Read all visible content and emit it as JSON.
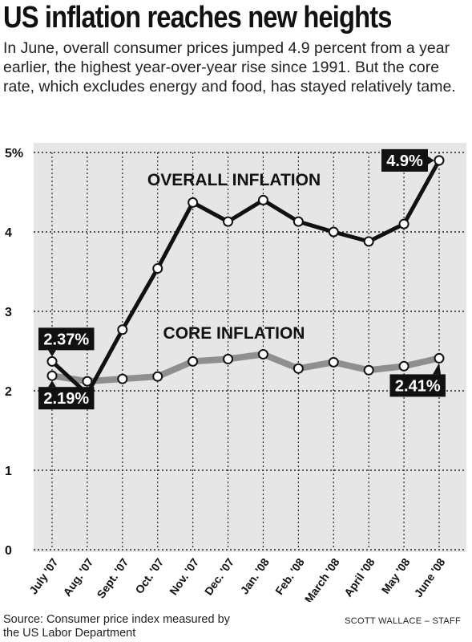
{
  "title": "US inflation reaches new heights",
  "subtitle": "In June, overall consumer prices jumped 4.9 percent from a year earlier, the highest year-over-year rise since 1991. But the core rate, which excludes energy and food, has stayed relatively tame.",
  "source": "Source: Consumer price index measured by the US Labor Department",
  "credit": "SCOTT WALLACE – STAFF",
  "colors": {
    "plot_background": "#e6e6e6",
    "overall_line": "#111111",
    "core_line": "#8f8f8f",
    "marker_fill": "#ffffff",
    "callout_fill": "#111111",
    "callout_text": "#ffffff"
  },
  "chart_data": {
    "type": "line",
    "categories": [
      "July '07",
      "Aug. '07",
      "Sept. '07",
      "Oct. '07",
      "Nov. '07",
      "Dec. '07",
      "Jan. '08",
      "Feb. '08",
      "March '08",
      "April '08",
      "May '08",
      "June '08"
    ],
    "series": [
      {
        "name": "OVERALL INFLATION",
        "values": [
          2.37,
          1.96,
          2.77,
          3.54,
          4.37,
          4.13,
          4.4,
          4.13,
          4.0,
          3.88,
          4.1,
          4.9
        ]
      },
      {
        "name": "CORE INFLATION",
        "values": [
          2.19,
          2.12,
          2.15,
          2.18,
          2.37,
          2.4,
          2.46,
          2.28,
          2.36,
          2.26,
          2.31,
          2.41
        ]
      }
    ],
    "callouts": [
      {
        "series": 0,
        "index": 0,
        "label": "2.37%",
        "side": "above"
      },
      {
        "series": 1,
        "index": 0,
        "label": "2.19%",
        "side": "below"
      },
      {
        "series": 0,
        "index": 11,
        "label": "4.9%",
        "side": "left"
      },
      {
        "series": 1,
        "index": 11,
        "label": "2.41%",
        "side": "below-left"
      }
    ],
    "ylim": [
      0,
      5
    ],
    "yticks": [
      "0",
      "1",
      "2",
      "3",
      "4",
      "5%"
    ],
    "xlabel": "",
    "ylabel": "",
    "grid": "horizontal dotted"
  }
}
